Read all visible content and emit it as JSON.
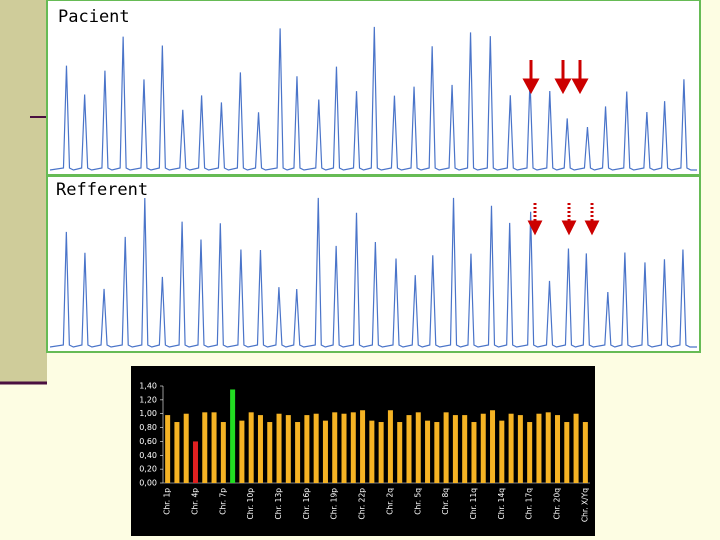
{
  "panels": {
    "top_label": "Pacient",
    "bottom_label": "Refferent"
  },
  "chart_data": {
    "type": "bar",
    "categories": [
      "Chr. 1p",
      null,
      null,
      "Chr. 4p",
      null,
      null,
      "Chr. 7p",
      null,
      null,
      "Chr. 10p",
      null,
      null,
      "Chr. 13p",
      null,
      null,
      "Chr. 16p",
      null,
      null,
      "Chr. 19p",
      null,
      null,
      "Chr. 22p",
      null,
      null,
      "Chr. 2q",
      null,
      null,
      "Chr. 5q",
      null,
      null,
      "Chr. 8q",
      null,
      null,
      "Chr. 11q",
      null,
      null,
      "Chr. 14q",
      null,
      null,
      "Chr. 17q",
      null,
      null,
      "Chr. 20q",
      null,
      null,
      "Chr. X/Yq"
    ],
    "values": [
      0.98,
      0.88,
      1.0,
      0.6,
      1.02,
      1.02,
      0.88,
      1.35,
      0.9,
      1.02,
      0.98,
      0.88,
      1.0,
      0.98,
      0.88,
      0.98,
      1.0,
      0.9,
      1.02,
      1.0,
      1.02,
      1.05,
      0.9,
      0.88,
      1.05,
      0.88,
      0.98,
      1.02,
      0.9,
      0.88,
      1.02,
      0.98,
      0.98,
      0.88,
      1.0,
      1.05,
      0.9,
      1.0,
      0.98,
      0.88,
      1.0,
      1.02,
      0.98,
      0.88,
      1.0,
      0.88
    ],
    "colors": [
      "#f5b324",
      "#f5b324",
      "#f5b324",
      "#e02020",
      "#f5b324",
      "#f5b324",
      "#f5b324",
      "#22dd22",
      "#f5b324",
      "#f5b324",
      "#f5b324",
      "#f5b324",
      "#f5b324",
      "#f5b324",
      "#f5b324",
      "#f5b324",
      "#f5b324",
      "#f5b324",
      "#f5b324",
      "#f5b324",
      "#f5b324",
      "#f5b324",
      "#f5b324",
      "#f5b324",
      "#f5b324",
      "#f5b324",
      "#f5b324",
      "#f5b324",
      "#f5b324",
      "#f5b324",
      "#f5b324",
      "#f5b324",
      "#f5b324",
      "#f5b324",
      "#f5b324",
      "#f5b324",
      "#f5b324",
      "#f5b324",
      "#f5b324",
      "#f5b324",
      "#f5b324",
      "#f5b324",
      "#f5b324",
      "#f5b324",
      "#f5b324",
      "#f5b324"
    ],
    "ylim": [
      0,
      1.4
    ],
    "yticks": [
      {
        "value": 0,
        "label": "0,00"
      },
      {
        "value": 0.2,
        "label": "0,20"
      },
      {
        "value": 0.4,
        "label": "0,40"
      },
      {
        "value": 0.6,
        "label": "0,60"
      },
      {
        "value": 0.8,
        "label": "0,80"
      },
      {
        "value": 1.0,
        "label": "1,00"
      },
      {
        "value": 1.2,
        "label": "1,20"
      },
      {
        "value": 1.4,
        "label": "1,40"
      }
    ]
  }
}
